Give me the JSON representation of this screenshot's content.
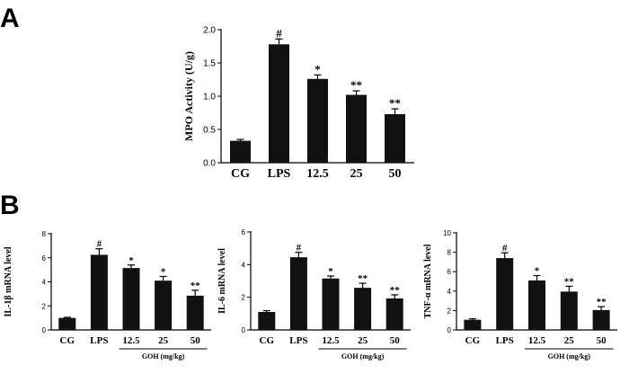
{
  "panel_labels": {
    "a": "A",
    "b": "B"
  },
  "group_label": "GOH (mg/kg)",
  "chart_data": [
    {
      "id": "mpo",
      "type": "bar",
      "panel": "A",
      "title": "",
      "ylabel": "MPO Activity (U/g)",
      "xlabel": "",
      "categories": [
        "CG",
        "LPS",
        "12.5",
        "25",
        "50"
      ],
      "values": [
        0.33,
        1.78,
        1.26,
        1.02,
        0.73
      ],
      "errors": [
        0.02,
        0.08,
        0.06,
        0.06,
        0.08
      ],
      "significance": [
        "",
        "#",
        "*",
        "**",
        "**"
      ],
      "ylim": [
        0,
        2.0
      ],
      "yticks": [
        "0.0",
        "0.5",
        "1.0",
        "1.5",
        "2.0"
      ],
      "color": "#111111"
    },
    {
      "id": "il1b",
      "type": "bar",
      "panel": "B",
      "title": "",
      "ylabel": "IL-1β mRNA level",
      "xlabel": "GOH (mg/kg)",
      "categories": [
        "CG",
        "LPS",
        "12.5",
        "25",
        "50"
      ],
      "values": [
        1.0,
        6.25,
        5.15,
        4.1,
        2.85
      ],
      "errors": [
        0.05,
        0.5,
        0.25,
        0.35,
        0.45
      ],
      "significance": [
        "",
        "#",
        "*",
        "*",
        "**"
      ],
      "ylim": [
        0,
        8
      ],
      "yticks": [
        "0",
        "2",
        "4",
        "6",
        "8"
      ],
      "color": "#111111"
    },
    {
      "id": "il6",
      "type": "bar",
      "panel": "B",
      "title": "",
      "ylabel": "IL-6 mRNA level",
      "xlabel": "GOH (mg/kg)",
      "categories": [
        "CG",
        "LPS",
        "12.5",
        "25",
        "50"
      ],
      "values": [
        1.1,
        4.45,
        3.15,
        2.58,
        1.93
      ],
      "errors": [
        0.08,
        0.3,
        0.15,
        0.28,
        0.22
      ],
      "significance": [
        "",
        "#",
        "*",
        "**",
        "**"
      ],
      "ylim": [
        0,
        6
      ],
      "yticks": [
        "0",
        "2",
        "4",
        "6"
      ],
      "color": "#111111"
    },
    {
      "id": "tnfa",
      "type": "bar",
      "panel": "B",
      "title": "",
      "ylabel": "TNF-α mRNA level",
      "xlabel": "GOH (mg/kg)",
      "categories": [
        "CG",
        "LPS",
        "12.5",
        "25",
        "50"
      ],
      "values": [
        1.05,
        7.4,
        5.1,
        3.95,
        2.05
      ],
      "errors": [
        0.1,
        0.55,
        0.5,
        0.55,
        0.35
      ],
      "significance": [
        "",
        "#",
        "*",
        "**",
        "**"
      ],
      "ylim": [
        0,
        10
      ],
      "yticks": [
        "0",
        "2",
        "4",
        "6",
        "8",
        "10"
      ],
      "color": "#111111"
    }
  ]
}
